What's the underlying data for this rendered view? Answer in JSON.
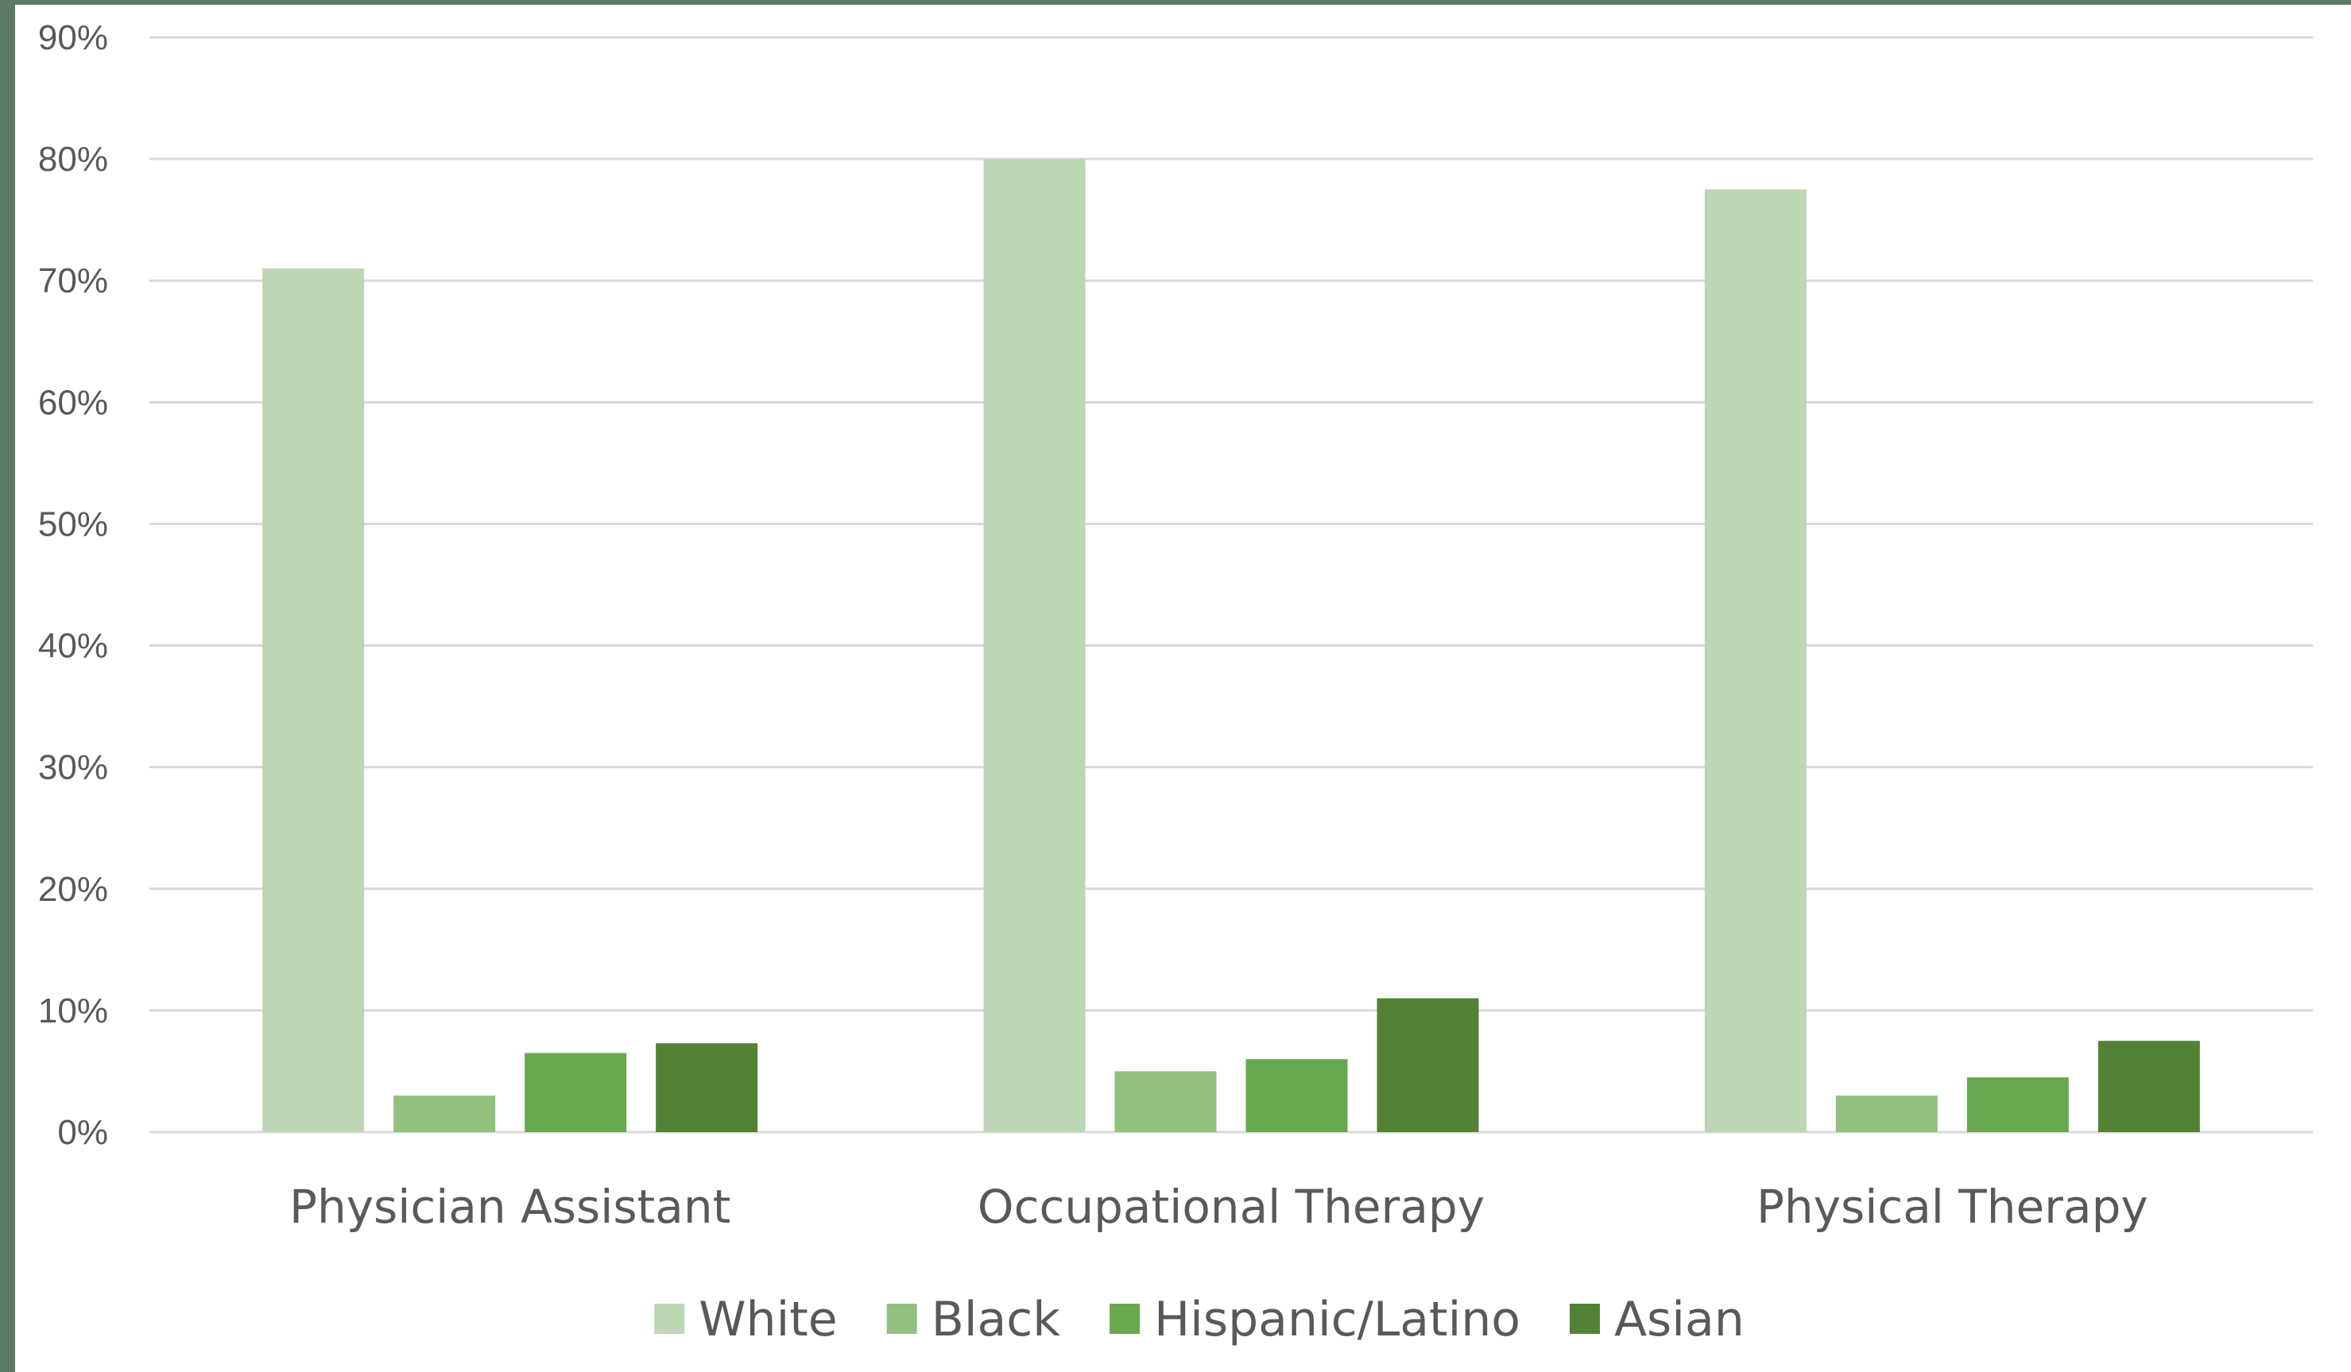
{
  "chart_data": {
    "type": "bar",
    "categories": [
      "Physician Assistant",
      "Occupational Therapy",
      "Physical Therapy"
    ],
    "series": [
      {
        "name": "White",
        "values": [
          71,
          80,
          77.5
        ],
        "color": "#bdd6b4"
      },
      {
        "name": "Black",
        "values": [
          3,
          5,
          3
        ],
        "color": "#92c07f"
      },
      {
        "name": "Hispanic/Latino",
        "values": [
          6.5,
          6,
          4.5
        ],
        "color": "#6aa84f"
      },
      {
        "name": "Asian",
        "values": [
          7.3,
          11,
          7.5
        ],
        "color": "#548235"
      }
    ],
    "title": "",
    "xlabel": "",
    "ylabel": "",
    "ylim": [
      0,
      90
    ],
    "yticks": [
      "0%",
      "10%",
      "20%",
      "30%",
      "40%",
      "50%",
      "60%",
      "70%",
      "80%",
      "90%"
    ],
    "grid": true,
    "legend": "bottom",
    "gridline_color": "#d9d9d9"
  }
}
